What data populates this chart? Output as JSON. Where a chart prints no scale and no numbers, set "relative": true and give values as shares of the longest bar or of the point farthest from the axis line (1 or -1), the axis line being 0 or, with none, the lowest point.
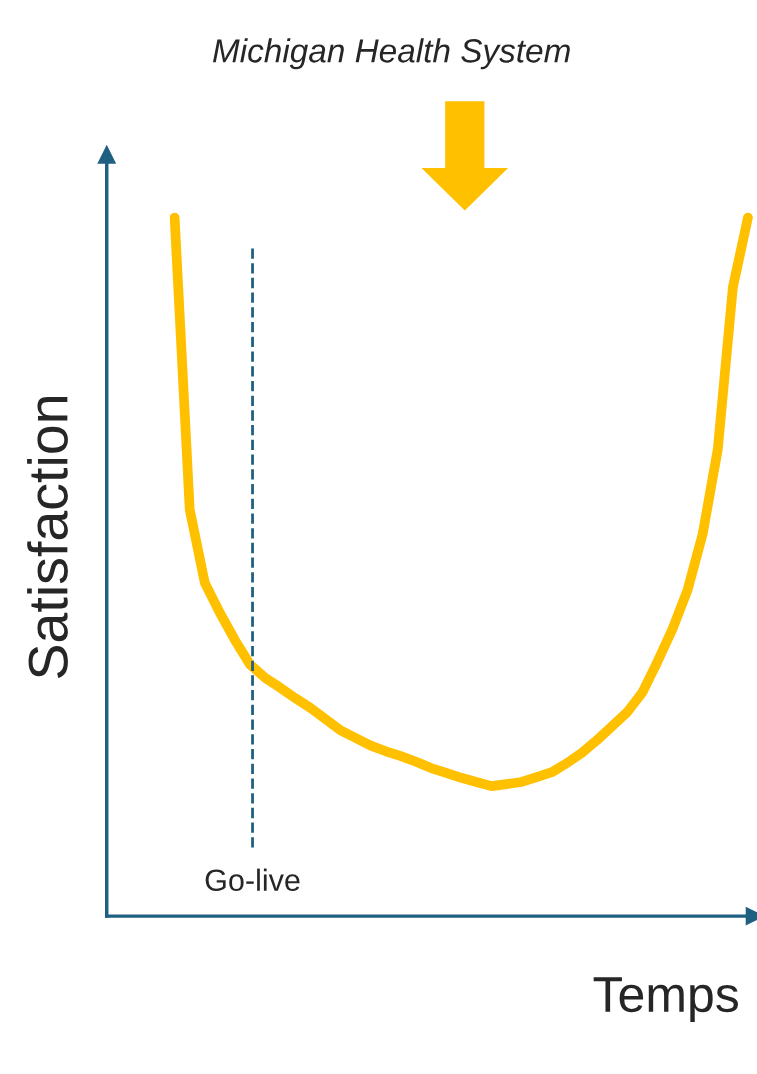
{
  "chart_data": {
    "type": "line",
    "relative": true,
    "xlabel": "Temps",
    "ylabel": "Satisfaction",
    "annotations": [
      "Michigan Health System",
      "Go-live"
    ],
    "categories": [
      null,
      null,
      null,
      null,
      null,
      null,
      null,
      null,
      null,
      null,
      null,
      null,
      null,
      null,
      null,
      null,
      null,
      null,
      null,
      null,
      null,
      null,
      null,
      null,
      null,
      null,
      null,
      null,
      null,
      null,
      null,
      null,
      null,
      null,
      null,
      null,
      null,
      null,
      null
    ],
    "series": [
      {
        "color": "#ffc000",
        "values": [
          1.0,
          0.582,
          0.477,
          0.434,
          0.395,
          0.36,
          0.341,
          0.327,
          0.312,
          0.298,
          0.282,
          0.266,
          0.255,
          0.244,
          0.236,
          0.229,
          0.221,
          0.212,
          0.205,
          0.198,
          0.192,
          0.186,
          0.189,
          0.192,
          0.199,
          0.206,
          0.219,
          0.234,
          0.252,
          0.272,
          0.292,
          0.32,
          0.364,
          0.411,
          0.467,
          0.547,
          0.668,
          0.9,
          1.0
        ]
      }
    ],
    "marker": "none",
    "line_style": "solid"
  }
}
